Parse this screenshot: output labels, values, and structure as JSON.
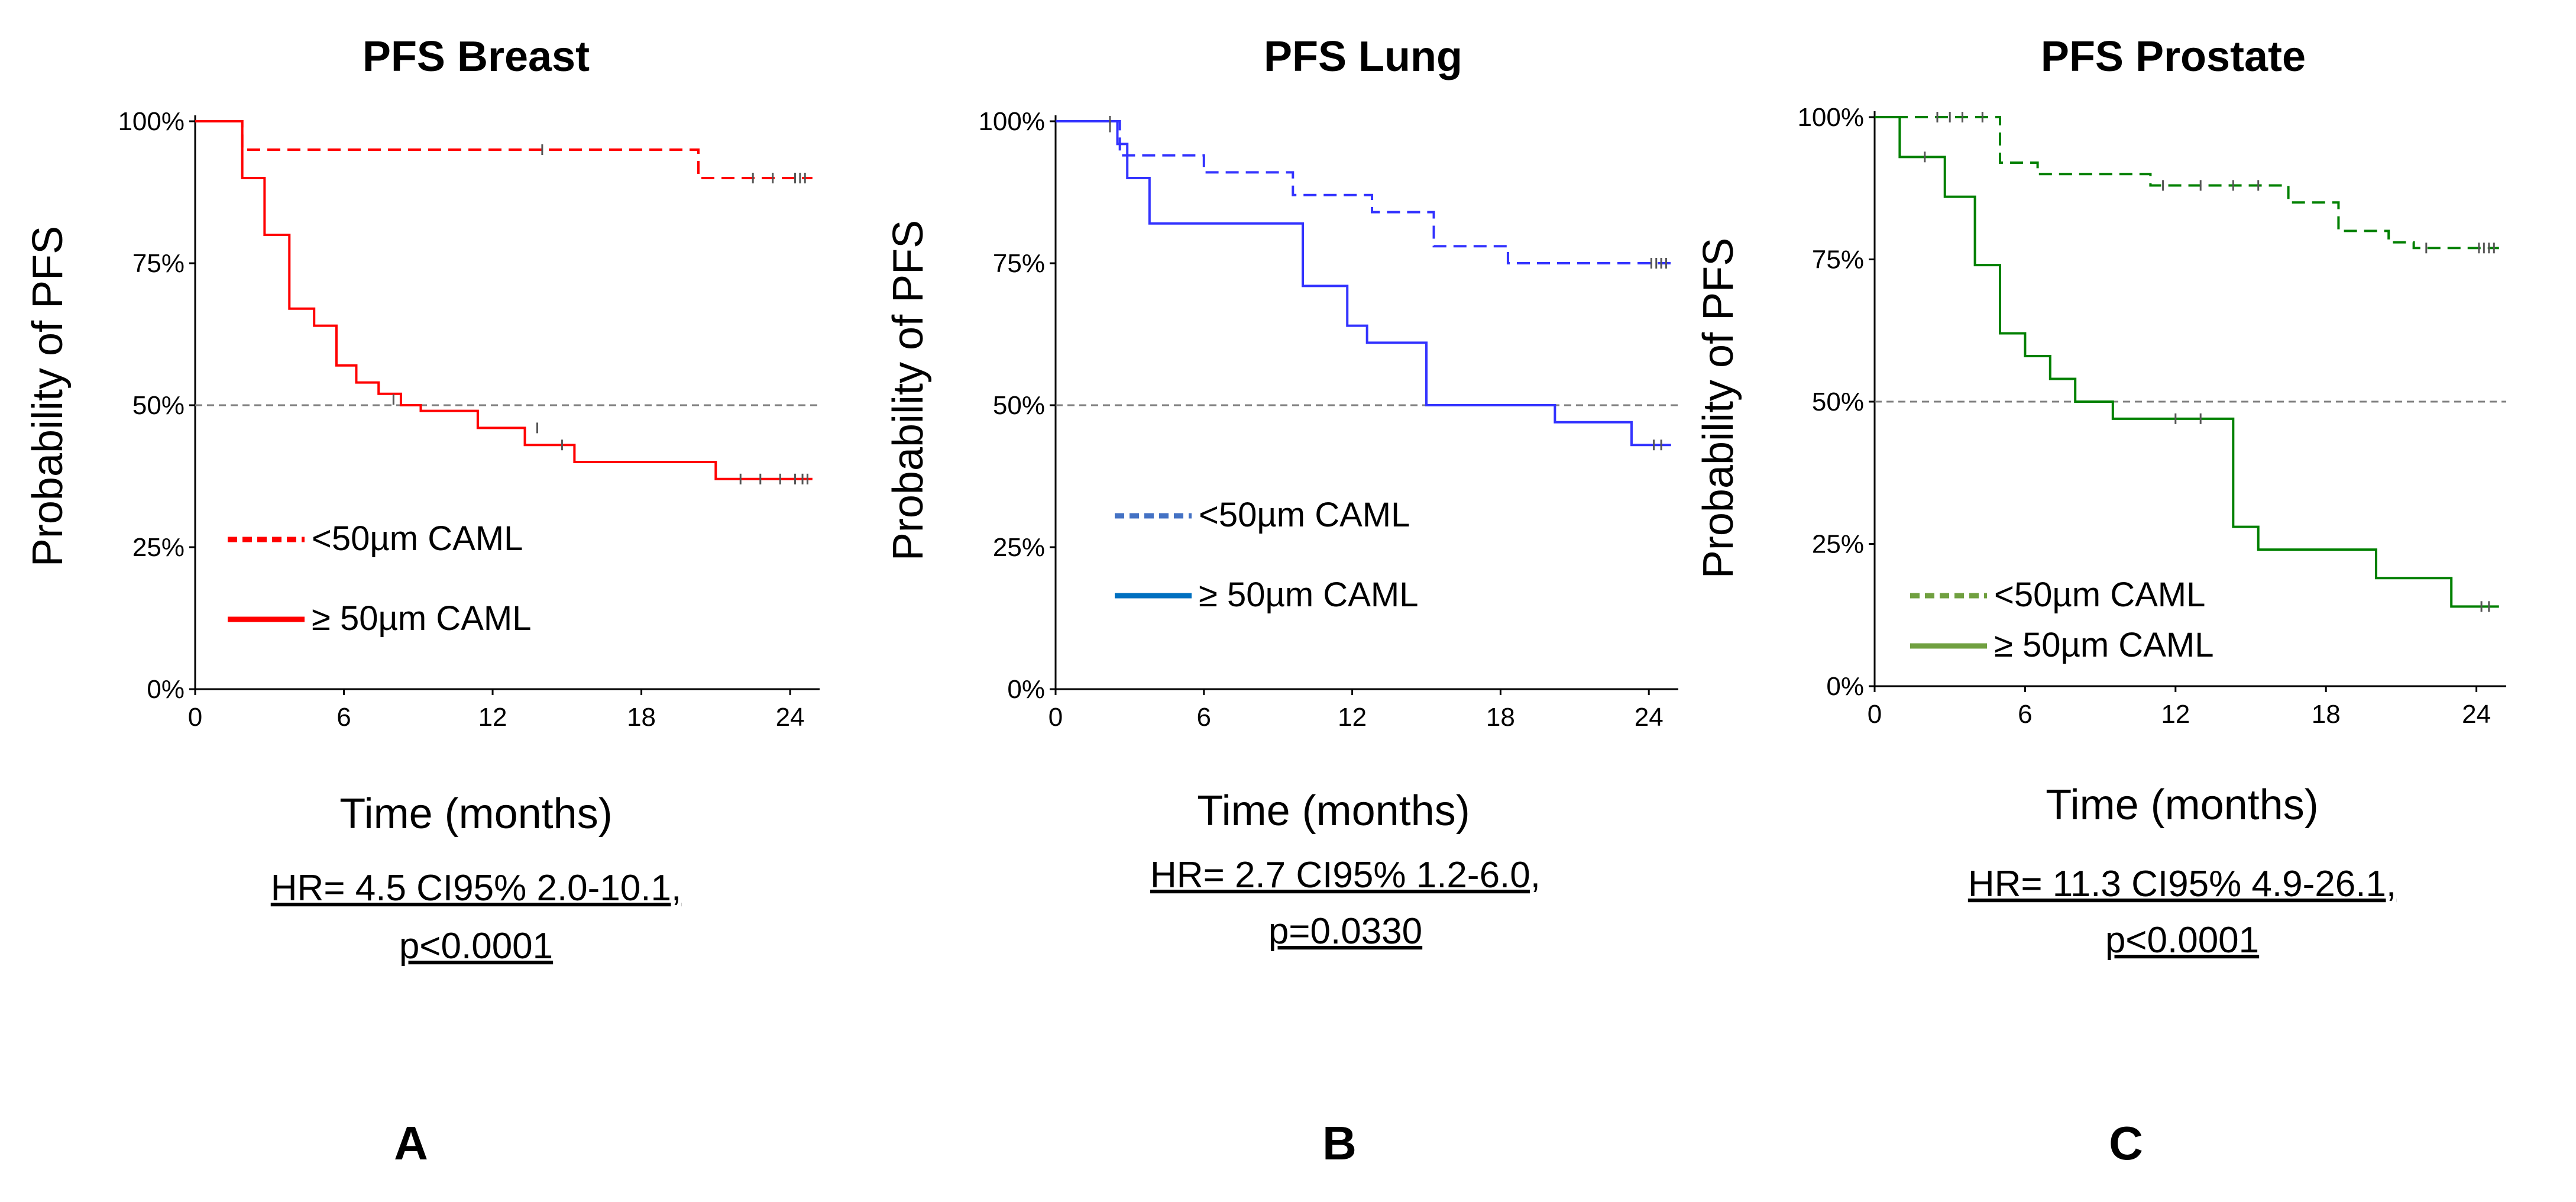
{
  "chart_data": [
    {
      "type": "line",
      "panel_letter": "A",
      "title": "PFS Breast",
      "xlabel": "Time (months)",
      "ylabel": "Probability of PFS",
      "xlim": [
        0,
        25
      ],
      "ylim": [
        0,
        100
      ],
      "x_ticks": [
        0,
        6,
        12,
        18,
        24
      ],
      "y_ticks": [
        "0%",
        "25%",
        "50%",
        "75%",
        "100%"
      ],
      "reference_line": 50,
      "hr_text": [
        "HR= 4.5 CI95% 2.0-10.1,",
        "p<0.0001"
      ],
      "series": [
        {
          "name": "<50µm CAML",
          "color": "#ff0000",
          "dash": true,
          "legend_dash": "dotted",
          "steps": [
            [
              0,
              100
            ],
            [
              1.9,
              95
            ],
            [
              20.3,
              90
            ],
            [
              24.9,
              90
            ]
          ],
          "censored": [
            [
              14.0,
              95
            ],
            [
              22.5,
              90
            ],
            [
              23.3,
              90
            ],
            [
              24.2,
              90
            ],
            [
              24.4,
              90
            ],
            [
              24.6,
              90
            ]
          ]
        },
        {
          "name": "≥ 50µm CAML",
          "color": "#ff0000",
          "dash": false,
          "steps": [
            [
              0,
              100
            ],
            [
              1.9,
              90
            ],
            [
              2.8,
              80
            ],
            [
              3.8,
              67
            ],
            [
              4.8,
              64
            ],
            [
              5.7,
              57
            ],
            [
              6.5,
              54
            ],
            [
              7.4,
              52
            ],
            [
              8.3,
              50
            ],
            [
              9.1,
              49
            ],
            [
              11.4,
              46
            ],
            [
              13.3,
              43
            ],
            [
              15.3,
              40
            ],
            [
              21.0,
              37
            ],
            [
              24.9,
              37
            ]
          ],
          "censored": [
            [
              8.0,
              51
            ],
            [
              13.8,
              46
            ],
            [
              14.8,
              43
            ],
            [
              22.0,
              37
            ],
            [
              22.8,
              37
            ],
            [
              23.6,
              37
            ],
            [
              24.2,
              37
            ],
            [
              24.5,
              37
            ],
            [
              24.7,
              37
            ]
          ]
        }
      ]
    },
    {
      "type": "line",
      "panel_letter": "B",
      "title": "PFS Lung",
      "xlabel": "Time (months)",
      "ylabel": "Probability of PFS",
      "xlim": [
        0,
        25
      ],
      "ylim": [
        0,
        100
      ],
      "x_ticks": [
        0,
        6,
        12,
        18,
        24
      ],
      "y_ticks": [
        "0%",
        "25%",
        "50%",
        "75%",
        "100%"
      ],
      "reference_line": 50,
      "hr_text": [
        "HR= 2.7 CI95% 1.2-6.0,",
        "p=0.0330"
      ],
      "series": [
        {
          "name": "<50µm CAML",
          "color": "#3333ff",
          "legend_color": "#4472c4",
          "dash": true,
          "legend_dash": "dotted",
          "steps": [
            [
              0,
              100
            ],
            [
              2.6,
              94
            ],
            [
              6.0,
              91
            ],
            [
              9.6,
              87
            ],
            [
              12.8,
              84
            ],
            [
              15.3,
              78
            ],
            [
              18.3,
              75
            ],
            [
              24.9,
              75
            ]
          ],
          "censored": [
            [
              2.2,
              99
            ],
            [
              24.1,
              75
            ],
            [
              24.3,
              75
            ],
            [
              24.5,
              75
            ],
            [
              24.7,
              75
            ]
          ]
        },
        {
          "name": "≥ 50µm CAML",
          "color": "#3333ff",
          "legend_color": "#0070c0",
          "dash": false,
          "steps": [
            [
              0,
              100
            ],
            [
              2.5,
              96
            ],
            [
              2.9,
              90
            ],
            [
              3.8,
              82
            ],
            [
              10.0,
              71
            ],
            [
              11.8,
              64
            ],
            [
              12.6,
              61
            ],
            [
              15.0,
              50
            ],
            [
              20.2,
              47
            ],
            [
              23.3,
              43
            ],
            [
              24.9,
              43
            ]
          ],
          "censored": [
            [
              2.2,
              100
            ],
            [
              24.2,
              43
            ],
            [
              24.5,
              43
            ]
          ]
        }
      ]
    },
    {
      "type": "line",
      "panel_letter": "C",
      "title": "PFS Prostate",
      "xlabel": "Time (months)",
      "ylabel": "Probability of PFS",
      "xlim": [
        0,
        25
      ],
      "ylim": [
        0,
        100
      ],
      "x_ticks": [
        0,
        6,
        12,
        18,
        24
      ],
      "y_ticks": [
        "0%",
        "25%",
        "50%",
        "75%",
        "100%"
      ],
      "reference_line": 50,
      "hr_text": [
        "HR= 11.3 CI95% 4.9-26.1,",
        "p<0.0001"
      ],
      "series": [
        {
          "name": "<50µm CAML",
          "color": "#008000",
          "legend_color": "#70a040",
          "dash": true,
          "legend_dash": "dotted",
          "steps": [
            [
              0,
              100
            ],
            [
              5.0,
              92
            ],
            [
              6.5,
              90
            ],
            [
              11.0,
              88
            ],
            [
              16.5,
              85
            ],
            [
              18.5,
              80
            ],
            [
              20.5,
              78
            ],
            [
              21.5,
              77
            ],
            [
              24.9,
              77
            ]
          ],
          "censored": [
            [
              2.5,
              100
            ],
            [
              3.0,
              100
            ],
            [
              3.5,
              100
            ],
            [
              4.3,
              100
            ],
            [
              11.5,
              88
            ],
            [
              13.0,
              88
            ],
            [
              14.3,
              88
            ],
            [
              15.3,
              88
            ],
            [
              22.0,
              77
            ],
            [
              24.1,
              77
            ],
            [
              24.3,
              77
            ],
            [
              24.5,
              77
            ],
            [
              24.7,
              77
            ]
          ]
        },
        {
          "name": "≥ 50µm CAML",
          "color": "#008000",
          "legend_color": "#70a040",
          "dash": false,
          "steps": [
            [
              0,
              100
            ],
            [
              1.0,
              93
            ],
            [
              2.8,
              86
            ],
            [
              4.0,
              74
            ],
            [
              5.0,
              62
            ],
            [
              6.0,
              58
            ],
            [
              7.0,
              54
            ],
            [
              8.0,
              50
            ],
            [
              9.5,
              47
            ],
            [
              14.3,
              28
            ],
            [
              15.3,
              24
            ],
            [
              20.0,
              19
            ],
            [
              23.0,
              14
            ],
            [
              24.9,
              14
            ]
          ],
          "censored": [
            [
              2.0,
              93
            ],
            [
              12.0,
              47
            ],
            [
              13.0,
              47
            ],
            [
              24.2,
              14
            ],
            [
              24.5,
              14
            ]
          ]
        }
      ]
    }
  ]
}
